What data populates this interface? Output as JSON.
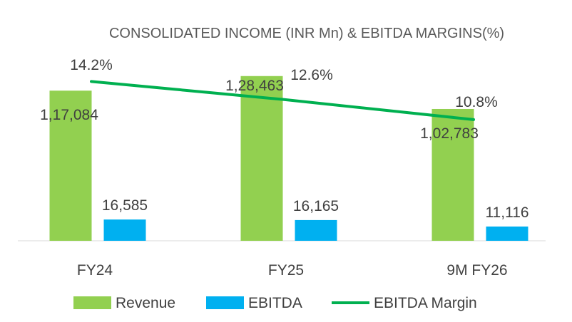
{
  "chart_data": {
    "type": "bar",
    "title": "CONSOLIDATED INCOME (INR Mn) & EBITDA MARGINS(%)",
    "categories": [
      "FY24",
      "FY25",
      "9M FY26"
    ],
    "series": [
      {
        "name": "Revenue",
        "type": "bar",
        "axis": "primary",
        "color": "#92D050",
        "values": [
          117084,
          128463,
          102783
        ],
        "labels": [
          "1,17,084",
          "1,28,463",
          "1,02,783"
        ]
      },
      {
        "name": "EBITDA",
        "type": "bar",
        "axis": "primary",
        "color": "#00B0F0",
        "values": [
          16585,
          16165,
          11116
        ],
        "labels": [
          "16,585",
          "16,165",
          "11,116"
        ]
      },
      {
        "name": "EBITDA Margin",
        "type": "line",
        "axis": "secondary",
        "color": "#00B050",
        "values": [
          14.2,
          12.6,
          10.8
        ],
        "labels": [
          "14.2%",
          "12.6%",
          "10.8%"
        ]
      }
    ],
    "xlabel": "",
    "ylabel": "",
    "ylim": [
      0,
      140000
    ],
    "y2lim": [
      0,
      16
    ],
    "grid": false,
    "legend": "bottom"
  }
}
